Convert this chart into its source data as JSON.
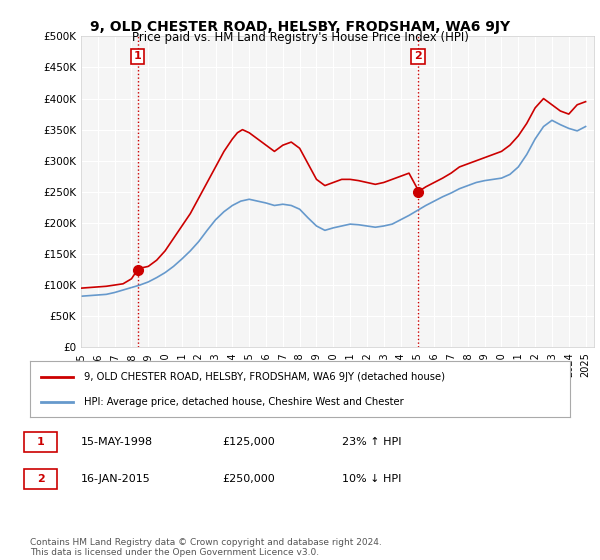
{
  "title": "9, OLD CHESTER ROAD, HELSBY, FRODSHAM, WA6 9JY",
  "subtitle": "Price paid vs. HM Land Registry's House Price Index (HPI)",
  "red_label": "9, OLD CHESTER ROAD, HELSBY, FRODSHAM, WA6 9JY (detached house)",
  "blue_label": "HPI: Average price, detached house, Cheshire West and Chester",
  "annotation1_label": "1",
  "annotation1_date": "15-MAY-1998",
  "annotation1_price": "£125,000",
  "annotation1_hpi": "23% ↑ HPI",
  "annotation2_label": "2",
  "annotation2_date": "16-JAN-2015",
  "annotation2_price": "£250,000",
  "annotation2_hpi": "10% ↓ HPI",
  "footer": "Contains HM Land Registry data © Crown copyright and database right 2024.\nThis data is licensed under the Open Government Licence v3.0.",
  "ylim": [
    0,
    500000
  ],
  "yticks": [
    0,
    50000,
    100000,
    150000,
    200000,
    250000,
    300000,
    350000,
    400000,
    450000,
    500000
  ],
  "xmin": 1995.0,
  "xmax": 2025.5,
  "sale1_x": 1998.37,
  "sale1_y": 125000,
  "sale2_x": 2015.04,
  "sale2_y": 250000,
  "red_color": "#cc0000",
  "blue_color": "#6699cc",
  "marker_color_red": "#cc0000",
  "bg_plot": "#f5f5f5",
  "bg_fig": "#ffffff",
  "grid_color": "#ffffff",
  "vline_color": "#cc0000",
  "vline_style": ":",
  "red_line_data_x": [
    1995.0,
    1995.5,
    1996.0,
    1996.5,
    1997.0,
    1997.5,
    1998.0,
    1998.37,
    1998.5,
    1999.0,
    1999.5,
    2000.0,
    2000.5,
    2001.0,
    2001.5,
    2002.0,
    2002.5,
    2003.0,
    2003.5,
    2004.0,
    2004.3,
    2004.6,
    2005.0,
    2005.5,
    2006.0,
    2006.5,
    2007.0,
    2007.5,
    2008.0,
    2008.5,
    2009.0,
    2009.5,
    2010.0,
    2010.5,
    2011.0,
    2011.5,
    2012.0,
    2012.5,
    2013.0,
    2013.5,
    2014.0,
    2014.5,
    2015.0,
    2015.04,
    2015.5,
    2016.0,
    2016.5,
    2017.0,
    2017.5,
    2018.0,
    2018.5,
    2019.0,
    2019.5,
    2020.0,
    2020.5,
    2021.0,
    2021.5,
    2022.0,
    2022.5,
    2023.0,
    2023.5,
    2024.0,
    2024.5,
    2025.0
  ],
  "red_line_data_y": [
    95000,
    96000,
    97000,
    98000,
    100000,
    102000,
    110000,
    125000,
    127000,
    130000,
    140000,
    155000,
    175000,
    195000,
    215000,
    240000,
    265000,
    290000,
    315000,
    335000,
    345000,
    350000,
    345000,
    335000,
    325000,
    315000,
    325000,
    330000,
    320000,
    295000,
    270000,
    260000,
    265000,
    270000,
    270000,
    268000,
    265000,
    262000,
    265000,
    270000,
    275000,
    280000,
    255000,
    250000,
    258000,
    265000,
    272000,
    280000,
    290000,
    295000,
    300000,
    305000,
    310000,
    315000,
    325000,
    340000,
    360000,
    385000,
    400000,
    390000,
    380000,
    375000,
    390000,
    395000
  ],
  "blue_line_data_x": [
    1995.0,
    1995.5,
    1996.0,
    1996.5,
    1997.0,
    1997.5,
    1998.0,
    1998.5,
    1999.0,
    1999.5,
    2000.0,
    2000.5,
    2001.0,
    2001.5,
    2002.0,
    2002.5,
    2003.0,
    2003.5,
    2004.0,
    2004.5,
    2005.0,
    2005.5,
    2006.0,
    2006.5,
    2007.0,
    2007.5,
    2008.0,
    2008.5,
    2009.0,
    2009.5,
    2010.0,
    2010.5,
    2011.0,
    2011.5,
    2012.0,
    2012.5,
    2013.0,
    2013.5,
    2014.0,
    2014.5,
    2015.0,
    2015.5,
    2016.0,
    2016.5,
    2017.0,
    2017.5,
    2018.0,
    2018.5,
    2019.0,
    2019.5,
    2020.0,
    2020.5,
    2021.0,
    2021.5,
    2022.0,
    2022.5,
    2023.0,
    2023.5,
    2024.0,
    2024.5,
    2025.0
  ],
  "blue_line_data_y": [
    82000,
    83000,
    84000,
    85000,
    88000,
    92000,
    96000,
    100000,
    105000,
    112000,
    120000,
    130000,
    142000,
    155000,
    170000,
    188000,
    205000,
    218000,
    228000,
    235000,
    238000,
    235000,
    232000,
    228000,
    230000,
    228000,
    222000,
    208000,
    195000,
    188000,
    192000,
    195000,
    198000,
    197000,
    195000,
    193000,
    195000,
    198000,
    205000,
    212000,
    220000,
    228000,
    235000,
    242000,
    248000,
    255000,
    260000,
    265000,
    268000,
    270000,
    272000,
    278000,
    290000,
    310000,
    335000,
    355000,
    365000,
    358000,
    352000,
    348000,
    355000
  ]
}
